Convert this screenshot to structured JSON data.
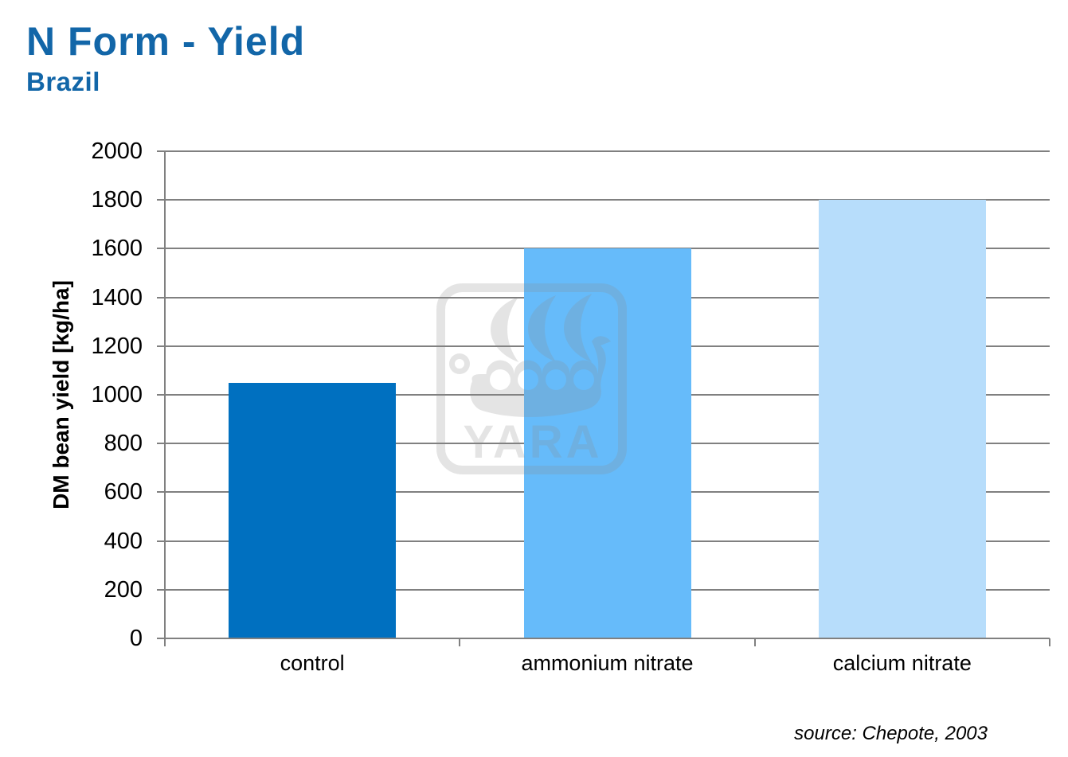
{
  "header": {
    "title": "N Form - Yield",
    "subtitle": "Brazil"
  },
  "watermark": {
    "text": "YARA",
    "icon": "viking-ship-icon"
  },
  "source_note": "source: Chepote, 2003",
  "colors": {
    "title_blue": "#1266A8",
    "grid_gray": "#808080",
    "watermark_gray": "#8A8A8A",
    "bar_control": "#0070C0",
    "bar_ammonium_nitrate": "#66BBFA",
    "bar_calcium_nitrate": "#B7DDFB"
  },
  "chart_data": {
    "type": "bar",
    "title": "N Form - Yield",
    "subtitle": "Brazil",
    "categories": [
      "control",
      "ammonium nitrate",
      "calcium nitrate"
    ],
    "values": [
      1050,
      1600,
      1800
    ],
    "bar_colors": [
      "#0070C0",
      "#66BBFA",
      "#B7DDFB"
    ],
    "xlabel": "",
    "ylabel": "DM bean yield [kg/ha]",
    "ylim": [
      0,
      2000
    ],
    "ytick_step": 200,
    "grid": true,
    "legend": false,
    "source": "source: Chepote, 2003"
  }
}
